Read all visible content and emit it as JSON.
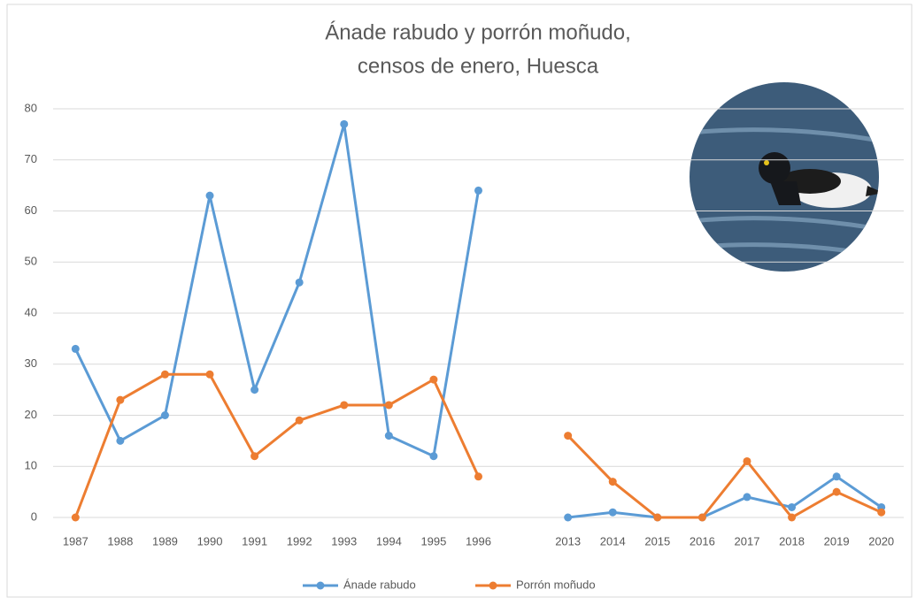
{
  "chart_data": {
    "type": "line",
    "title": "Ánade rabudo y porrón moñudo,",
    "subtitle": "censos de enero, Huesca",
    "categories": [
      "1987",
      "1988",
      "1989",
      "1990",
      "1991",
      "1992",
      "1993",
      "1994",
      "1995",
      "1996",
      null,
      "2013",
      "2014",
      "2015",
      "2016",
      "2017",
      "2018",
      "2019",
      "2020"
    ],
    "series": [
      {
        "name": "Ánade rabudo",
        "color": "#5b9bd5",
        "values": [
          33,
          15,
          20,
          63,
          25,
          46,
          77,
          16,
          12,
          64,
          null,
          0,
          1,
          0,
          0,
          4,
          2,
          8,
          2
        ]
      },
      {
        "name": "Porrón moñudo",
        "color": "#ed7d31",
        "values": [
          0,
          23,
          28,
          28,
          12,
          19,
          22,
          22,
          27,
          8,
          null,
          16,
          7,
          0,
          0,
          11,
          0,
          5,
          1
        ]
      }
    ],
    "ylim": [
      0,
      80
    ],
    "yticks": [
      0,
      10,
      20,
      30,
      40,
      50,
      60,
      70,
      80
    ],
    "grid": true,
    "legend": "bottom"
  }
}
